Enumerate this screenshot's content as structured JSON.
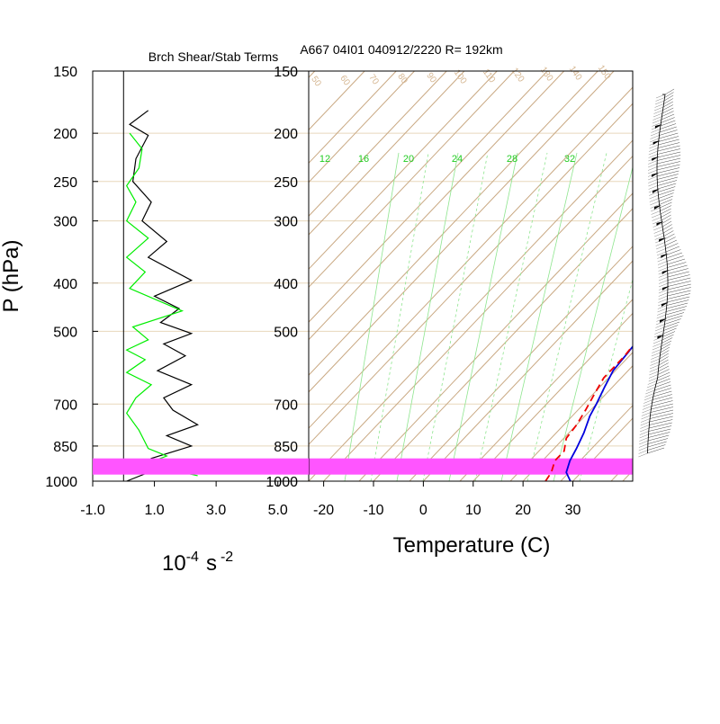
{
  "chart_data": [
    {
      "type": "line",
      "title": "Brch Shear/Stab Terms",
      "ylabel": "P (hPa)",
      "xlabel_base": "10",
      "xlabel_exp": "-4",
      "xlabel_unit": "s",
      "xlabel_unit_exp": "-2",
      "y_scale": "log",
      "ylim": [
        1000,
        150
      ],
      "xlim": [
        -1.0,
        6.0
      ],
      "x_ticks": [
        "-1.0",
        "1.0",
        "3.0",
        "5.0"
      ],
      "x_tick_values": [
        -1.0,
        1.0,
        3.0,
        5.0
      ],
      "y_ticks": [
        "150",
        "200",
        "250",
        "300",
        "400",
        "500",
        "700",
        "850",
        "1000"
      ],
      "y_tick_values": [
        150,
        200,
        250,
        300,
        400,
        500,
        700,
        850,
        1000
      ],
      "zero_line": 0,
      "series": [
        {
          "color": "#000000",
          "points": [
            [
              0.8,
              180
            ],
            [
              0.2,
              192
            ],
            [
              0.8,
              202
            ],
            [
              0.4,
              225
            ],
            [
              0.3,
              250
            ],
            [
              0.9,
              275
            ],
            [
              0.6,
              300
            ],
            [
              1.4,
              330
            ],
            [
              0.8,
              355
            ],
            [
              2.2,
              395
            ],
            [
              1.0,
              425
            ],
            [
              1.8,
              450
            ],
            [
              1.2,
              480
            ],
            [
              2.2,
              505
            ],
            [
              1.3,
              530
            ],
            [
              2.0,
              560
            ],
            [
              1.1,
              600
            ],
            [
              2.2,
              640
            ],
            [
              1.3,
              680
            ],
            [
              1.6,
              720
            ],
            [
              2.4,
              770
            ],
            [
              1.4,
              810
            ],
            [
              2.2,
              850
            ],
            [
              0.9,
              900
            ],
            [
              1.0,
              950
            ],
            [
              0.1,
              1000
            ]
          ]
        },
        {
          "color": "#00ee00",
          "points": [
            [
              0.2,
              200
            ],
            [
              0.6,
              215
            ],
            [
              0.5,
              235
            ],
            [
              0.1,
              255
            ],
            [
              0.4,
              275
            ],
            [
              0.1,
              300
            ],
            [
              0.8,
              325
            ],
            [
              0.1,
              355
            ],
            [
              0.7,
              380
            ],
            [
              0.2,
              410
            ],
            [
              1.9,
              455
            ],
            [
              0.3,
              490
            ],
            [
              0.8,
              520
            ],
            [
              0.1,
              545
            ],
            [
              0.7,
              570
            ],
            [
              0.1,
              605
            ],
            [
              0.9,
              640
            ],
            [
              0.4,
              680
            ],
            [
              0.1,
              730
            ],
            [
              0.5,
              790
            ],
            [
              0.8,
              860
            ],
            [
              1.4,
              890
            ],
            [
              0.8,
              920
            ],
            [
              1.6,
              950
            ],
            [
              2.4,
              975
            ]
          ]
        }
      ]
    },
    {
      "type": "line",
      "subtype": "skew-t",
      "title": "A667 04I01 040912/2220 R= 192km",
      "xlabel": "Temperature (C)",
      "y_scale": "log",
      "ylim": [
        1000,
        150
      ],
      "xlim": [
        -23,
        42
      ],
      "x_ticks": [
        "-20",
        "-10",
        "0",
        "10",
        "20",
        "30"
      ],
      "x_tick_values": [
        -20,
        -10,
        0,
        10,
        20,
        30
      ],
      "y_ticks": [
        "150",
        "200",
        "250",
        "300",
        "400",
        "500",
        "700",
        "850",
        "1000"
      ],
      "y_tick_values": [
        150,
        200,
        250,
        300,
        400,
        500,
        700,
        850,
        1000
      ],
      "mixing_ratio_labels": [
        "12",
        "16",
        "20",
        "24",
        "28",
        "32"
      ],
      "mixing_ratio_label_values": [
        12,
        16,
        20,
        24,
        28,
        32
      ],
      "adiabat_labels": [
        "50",
        "60",
        "70",
        "80",
        "90",
        "100",
        "110",
        "120",
        "130",
        "140",
        "150"
      ],
      "highlight_band_hpa": [
        900,
        970
      ],
      "highlight_color": "#ff55ff",
      "series": [
        {
          "color": "#0000dd",
          "dash": "solid",
          "points": [
            [
              29.5,
              1000
            ],
            [
              27,
              960
            ],
            [
              25.5,
              910
            ],
            [
              24.5,
              860
            ],
            [
              23,
              800
            ],
            [
              21,
              740
            ],
            [
              20,
              700
            ],
            [
              18.5,
              650
            ],
            [
              17,
              600
            ],
            [
              16.5,
              550
            ],
            [
              15.8,
              500
            ],
            [
              14.5,
              460
            ],
            [
              13.5,
              420
            ],
            [
              13,
              400
            ],
            [
              12,
              360
            ],
            [
              10.5,
              330
            ],
            [
              9,
              300
            ],
            [
              6.5,
              270
            ],
            [
              3.5,
              240
            ],
            [
              0.5,
              215
            ],
            [
              -2,
              195
            ],
            [
              -4,
              180
            ]
          ]
        },
        {
          "color": "#ee0000",
          "dash": "dashed",
          "points": [
            [
              24.5,
              1000
            ],
            [
              24,
              960
            ],
            [
              22.5,
              910
            ],
            [
              22.5,
              870
            ],
            [
              20.5,
              820
            ],
            [
              20,
              770
            ],
            [
              19,
              720
            ],
            [
              17.5,
              660
            ],
            [
              16.5,
              620
            ],
            [
              16.5,
              560
            ],
            [
              16,
              520
            ],
            [
              15.5,
              480
            ],
            [
              15.5,
              450
            ],
            [
              14,
              430
            ],
            [
              12.5,
              410
            ],
            [
              12.5,
              380
            ],
            [
              12,
              360
            ],
            [
              10,
              330
            ],
            [
              7,
              300
            ],
            [
              4.5,
              275
            ],
            [
              2,
              255
            ],
            [
              0,
              230
            ],
            [
              -4.5,
              215
            ],
            [
              -7,
              200
            ],
            [
              -9,
              190
            ]
          ]
        }
      ]
    }
  ]
}
